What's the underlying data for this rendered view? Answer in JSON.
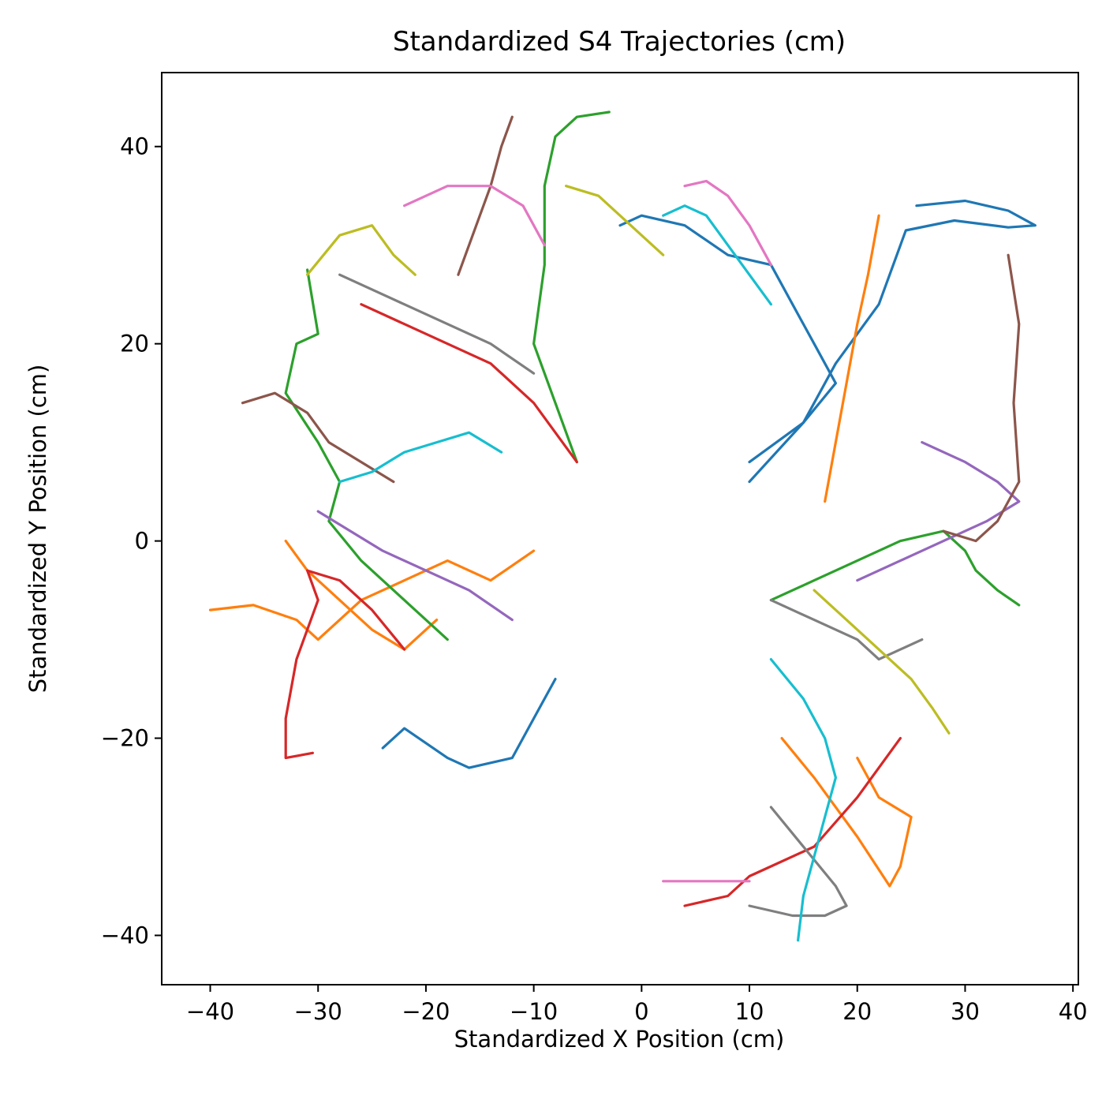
{
  "chart_data": {
    "type": "line",
    "title": "Standardized S4 Trajectories (cm)",
    "xlabel": "Standardized X Position (cm)",
    "ylabel": "Standardized Y Position (cm)",
    "xlim": [
      -44.5,
      40.5
    ],
    "ylim": [
      -45,
      47.5
    ],
    "xticks": [
      -40,
      -30,
      -20,
      -10,
      0,
      10,
      20,
      30,
      40
    ],
    "yticks": [
      -40,
      -20,
      0,
      20,
      40
    ],
    "xtick_labels": [
      "−40",
      "−30",
      "−20",
      "−10",
      "0",
      "10",
      "20",
      "30",
      "40"
    ],
    "ytick_labels": [
      "−40",
      "−20",
      "0",
      "20",
      "40"
    ],
    "grid": false,
    "legend": "none",
    "colors": [
      "#1f77b4",
      "#ff7f0e",
      "#2ca02c",
      "#d62728",
      "#9467bd",
      "#8c564b",
      "#e377c2",
      "#7f7f7f",
      "#bcbd22",
      "#17becf"
    ],
    "series": [
      {
        "color": "#1f77b4",
        "x": [
          25.5,
          30,
          34,
          36.5,
          34,
          29,
          24.5,
          22,
          18,
          15,
          10
        ],
        "y": [
          34,
          34.5,
          33.5,
          32,
          31.8,
          32.5,
          31.5,
          24,
          18,
          12,
          6
        ]
      },
      {
        "color": "#1f77b4",
        "x": [
          -24,
          -22,
          -18,
          -16,
          -12,
          -10,
          -8
        ],
        "y": [
          -21,
          -19,
          -22,
          -23,
          -22,
          -18,
          -14
        ]
      },
      {
        "color": "#1f77b4",
        "x": [
          -2,
          0,
          4,
          8,
          12,
          14,
          16,
          18,
          15,
          10
        ],
        "y": [
          32,
          33,
          32,
          29,
          28,
          24,
          20,
          16,
          12,
          8
        ]
      },
      {
        "color": "#ff7f0e",
        "x": [
          -40,
          -36,
          -32,
          -30,
          -28,
          -26,
          -22,
          -18,
          -14,
          -10
        ],
        "y": [
          -7,
          -6.5,
          -8,
          -10,
          -8,
          -6,
          -4,
          -2,
          -4,
          -1
        ]
      },
      {
        "color": "#ff7f0e",
        "x": [
          -33,
          -31,
          -28,
          -25,
          -22,
          -19
        ],
        "y": [
          0,
          -3,
          -6,
          -9,
          -11,
          -8
        ]
      },
      {
        "color": "#ff7f0e",
        "x": [
          20,
          22,
          25,
          24,
          23,
          20,
          16,
          13
        ],
        "y": [
          -22,
          -26,
          -28,
          -33,
          -35,
          -30,
          -24,
          -20
        ]
      },
      {
        "color": "#ff7f0e",
        "x": [
          22,
          21,
          20,
          19,
          18,
          17
        ],
        "y": [
          33,
          27,
          22,
          16,
          10,
          4
        ]
      },
      {
        "color": "#2ca02c",
        "x": [
          -3,
          -6,
          -8,
          -9,
          -9,
          -10,
          -8,
          -6
        ],
        "y": [
          43.5,
          43,
          41,
          36,
          28,
          20,
          14,
          8
        ]
      },
      {
        "color": "#2ca02c",
        "x": [
          -31,
          -30,
          -32,
          -33,
          -30,
          -28,
          -29,
          -26,
          -22,
          -18
        ],
        "y": [
          27.5,
          21,
          20,
          15,
          10,
          6,
          2,
          -2,
          -6,
          -10
        ]
      },
      {
        "color": "#2ca02c",
        "x": [
          35,
          33,
          31,
          30,
          28,
          24,
          20,
          16,
          12
        ],
        "y": [
          -6.5,
          -5,
          -3,
          -1,
          1,
          0,
          -2,
          -4,
          -6
        ]
      },
      {
        "color": "#d62728",
        "x": [
          -30.5,
          -33,
          -33,
          -32,
          -30,
          -31,
          -28,
          -25,
          -22
        ],
        "y": [
          -21.5,
          -22,
          -18,
          -12,
          -6,
          -3,
          -4,
          -7,
          -11
        ]
      },
      {
        "color": "#d62728",
        "x": [
          4,
          8,
          10,
          12,
          16,
          20,
          24
        ],
        "y": [
          -37,
          -36,
          -34,
          -33,
          -31,
          -26,
          -20
        ]
      },
      {
        "color": "#d62728",
        "x": [
          -26,
          -22,
          -18,
          -14,
          -10,
          -6
        ],
        "y": [
          24,
          22,
          20,
          18,
          14,
          8
        ]
      },
      {
        "color": "#9467bd",
        "x": [
          20,
          24,
          28,
          32,
          35,
          33,
          30,
          26
        ],
        "y": [
          -4,
          -2,
          0,
          2,
          4,
          6,
          8,
          10
        ]
      },
      {
        "color": "#9467bd",
        "x": [
          -30,
          -27,
          -24,
          -20,
          -16,
          -12
        ],
        "y": [
          3,
          1,
          -1,
          -3,
          -5,
          -8
        ]
      },
      {
        "color": "#8c564b",
        "x": [
          -12,
          -13,
          -14,
          -15,
          -16,
          -17
        ],
        "y": [
          43,
          40,
          36,
          33,
          30,
          27
        ]
      },
      {
        "color": "#8c564b",
        "x": [
          34,
          35,
          34.5,
          35,
          33,
          31,
          28
        ],
        "y": [
          29,
          22,
          14,
          6,
          2,
          0,
          1
        ]
      },
      {
        "color": "#8c564b",
        "x": [
          -37,
          -34,
          -31,
          -29,
          -26,
          -23
        ],
        "y": [
          14,
          15,
          13,
          10,
          8,
          6
        ]
      },
      {
        "color": "#e377c2",
        "x": [
          -22,
          -18,
          -14,
          -11,
          -9
        ],
        "y": [
          34,
          36,
          36,
          34,
          30
        ]
      },
      {
        "color": "#e377c2",
        "x": [
          2,
          6,
          10
        ],
        "y": [
          -34.5,
          -34.5,
          -34.5
        ]
      },
      {
        "color": "#e377c2",
        "x": [
          4,
          6,
          8,
          10,
          12
        ],
        "y": [
          36,
          36.5,
          35,
          32,
          28
        ]
      },
      {
        "color": "#7f7f7f",
        "x": [
          10,
          14,
          17,
          19,
          18,
          15,
          12
        ],
        "y": [
          -37,
          -38,
          -38,
          -37,
          -35,
          -31,
          -27
        ]
      },
      {
        "color": "#7f7f7f",
        "x": [
          -28,
          -26,
          -22,
          -18,
          -14,
          -10
        ],
        "y": [
          27,
          26,
          24,
          22,
          20,
          17
        ]
      },
      {
        "color": "#7f7f7f",
        "x": [
          26,
          24,
          22,
          20,
          16,
          12
        ],
        "y": [
          -10,
          -11,
          -12,
          -10,
          -8,
          -6
        ]
      },
      {
        "color": "#bcbd22",
        "x": [
          -31,
          -28,
          -25,
          -23,
          -21
        ],
        "y": [
          27,
          31,
          32,
          29,
          27
        ]
      },
      {
        "color": "#bcbd22",
        "x": [
          28.5,
          27,
          25,
          22,
          19,
          16
        ],
        "y": [
          -19.5,
          -17,
          -14,
          -11,
          -8,
          -5
        ]
      },
      {
        "color": "#bcbd22",
        "x": [
          -7,
          -4,
          -2,
          0,
          2
        ],
        "y": [
          36,
          35,
          33,
          31,
          29
        ]
      },
      {
        "color": "#17becf",
        "x": [
          14.5,
          15,
          16,
          17,
          18,
          17,
          15,
          12
        ],
        "y": [
          -40.5,
          -36,
          -32,
          -28,
          -24,
          -20,
          -16,
          -12
        ]
      },
      {
        "color": "#17becf",
        "x": [
          -28,
          -25,
          -22,
          -19,
          -16,
          -13
        ],
        "y": [
          6,
          7,
          9,
          10,
          11,
          9
        ]
      },
      {
        "color": "#17becf",
        "x": [
          2,
          4,
          6,
          8,
          10,
          12
        ],
        "y": [
          33,
          34,
          33,
          30,
          27,
          24
        ]
      }
    ]
  }
}
